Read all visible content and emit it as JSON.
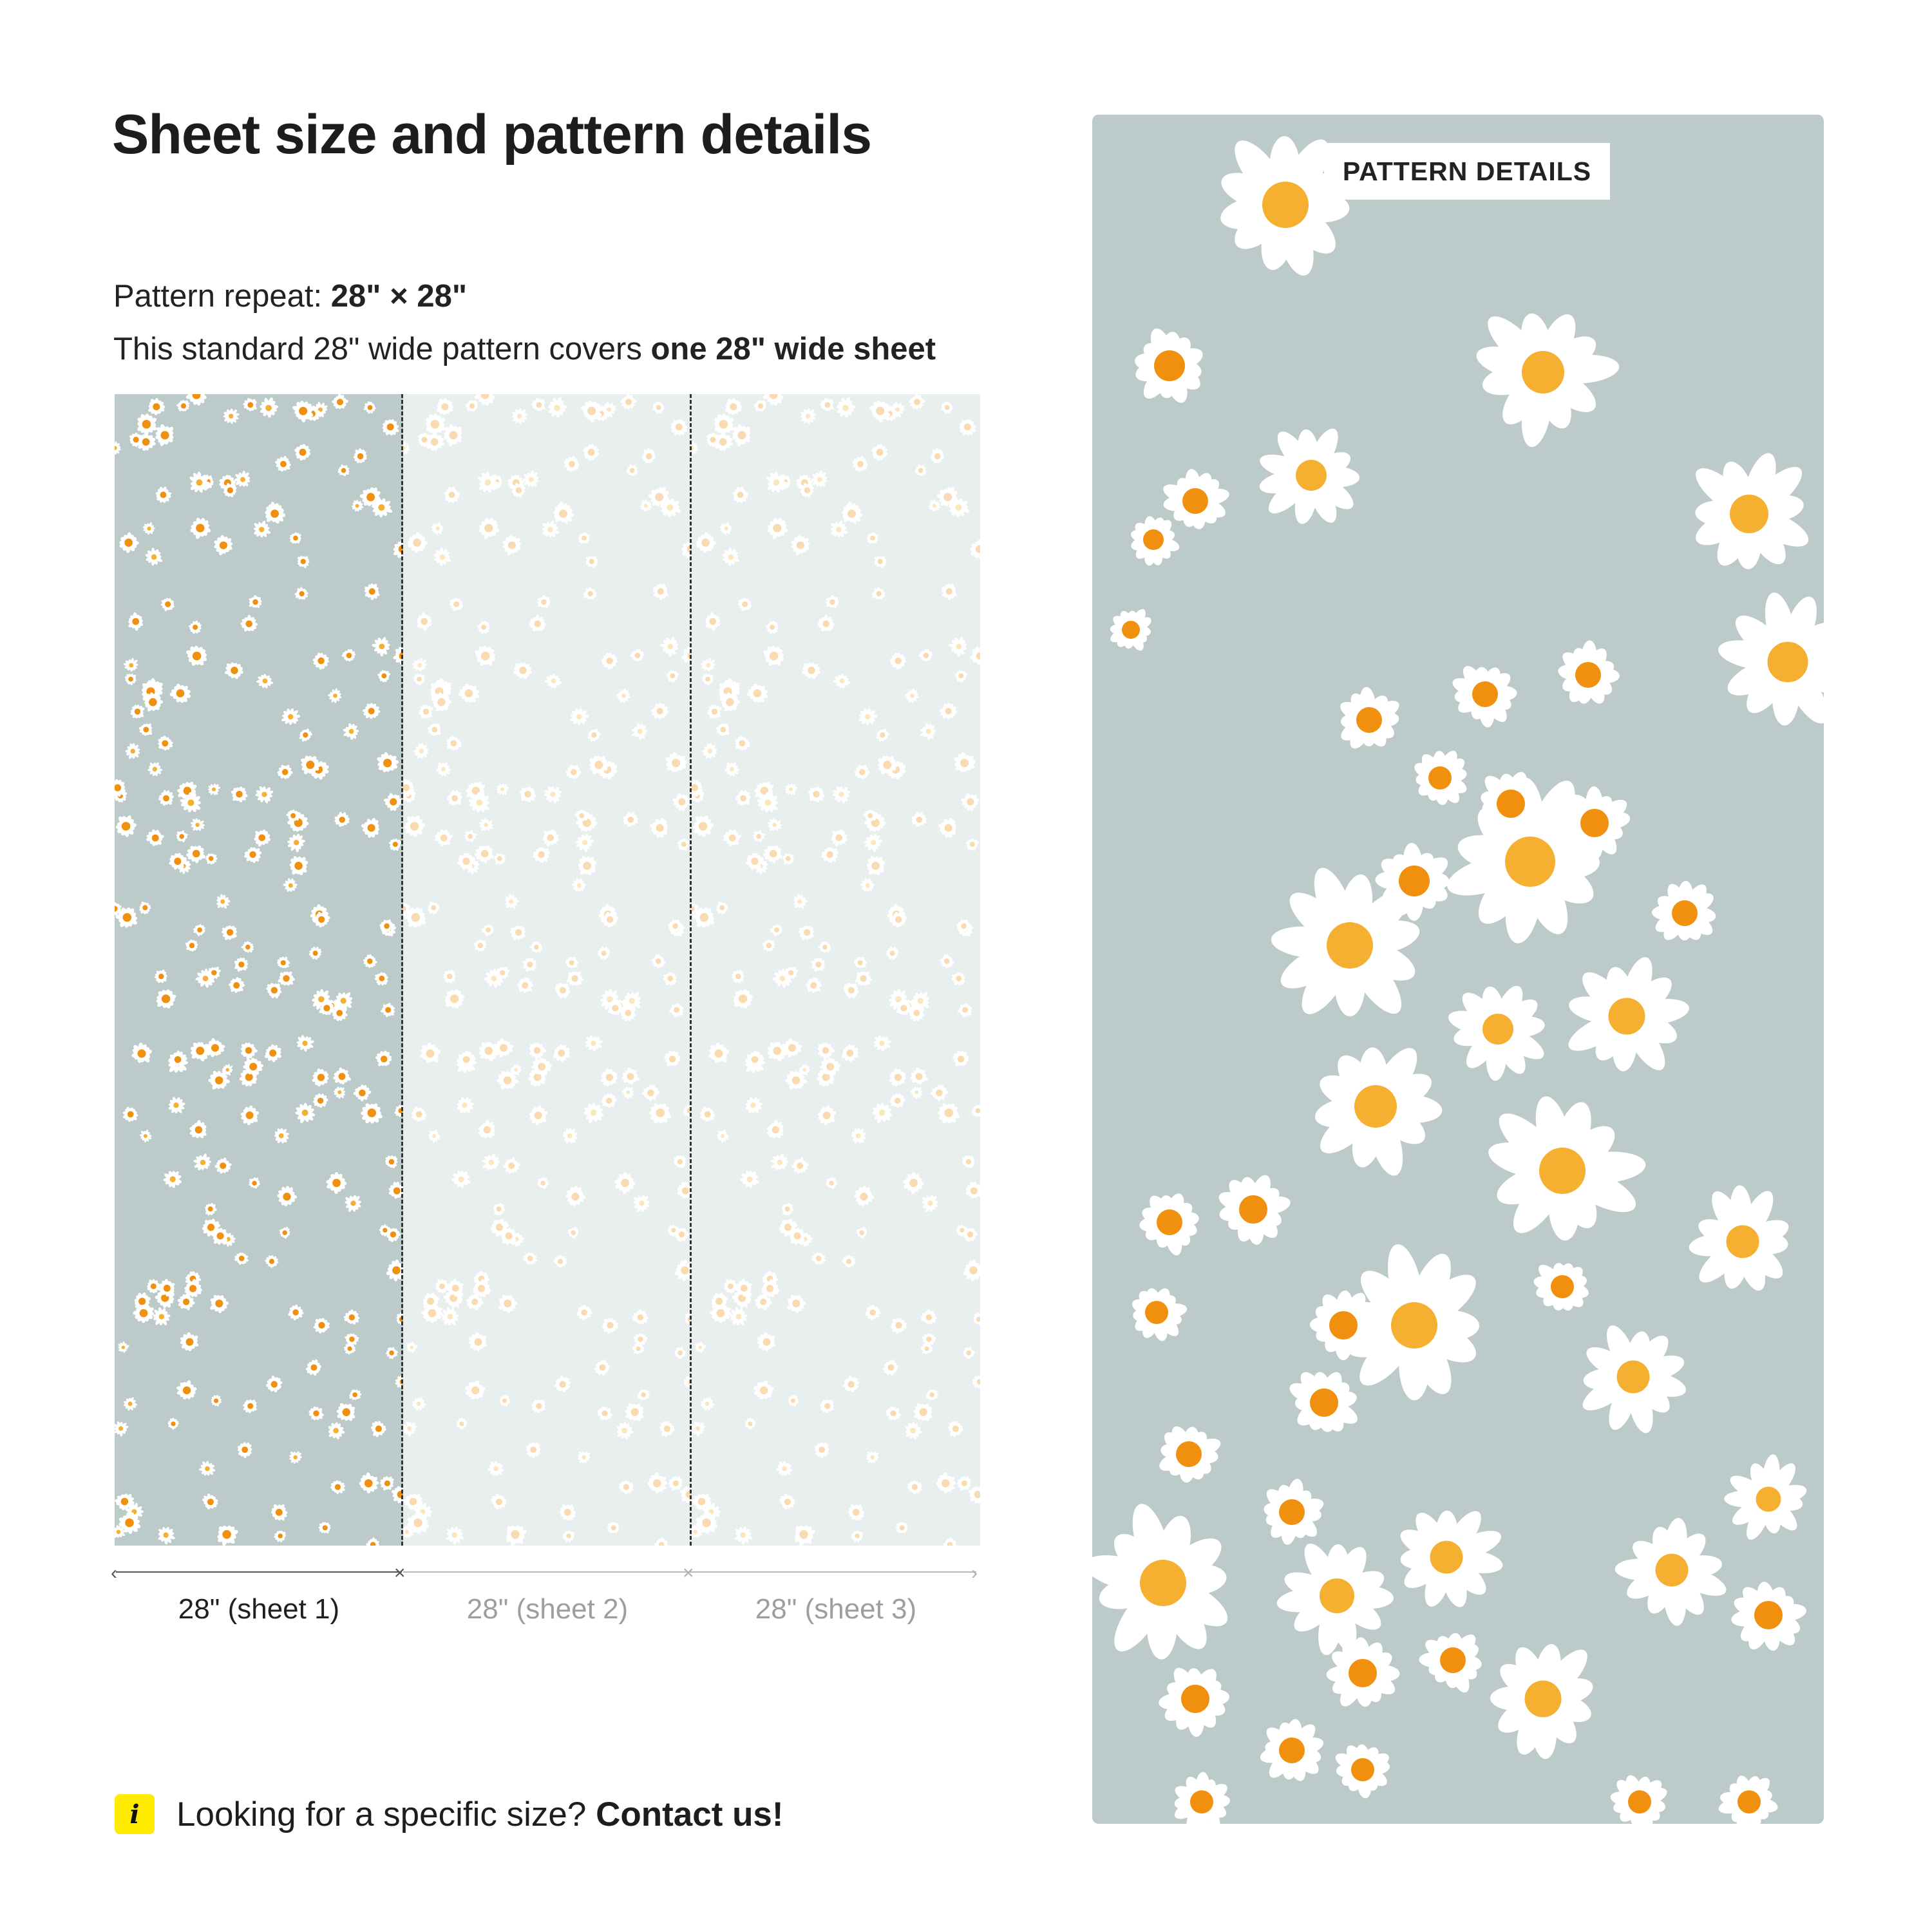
{
  "page": {
    "title": "Sheet size and pattern details",
    "repeat_label": "Pattern repeat: ",
    "repeat_value": "28\" × 28\"",
    "coverage_text": "This standard 28\" wide pattern covers ",
    "coverage_bold": "one 28\" wide sheet"
  },
  "sheets": [
    {
      "label": "28\" (sheet 1)",
      "active": true
    },
    {
      "label": "28\" (sheet 2)",
      "active": false
    },
    {
      "label": "28\" (sheet 3)",
      "active": false
    }
  ],
  "info": {
    "icon": "info-icon",
    "icon_glyph": "i",
    "text": "Looking for a specific size? ",
    "link": "Contact us!"
  },
  "detail": {
    "badge": "PATTERN DETAILS"
  },
  "colors": {
    "pattern_bg": "#bccaca",
    "petal": "#ffffff",
    "center_small": "#f0900e",
    "center_large": "#f5b031",
    "info_badge": "#ffeb00"
  }
}
